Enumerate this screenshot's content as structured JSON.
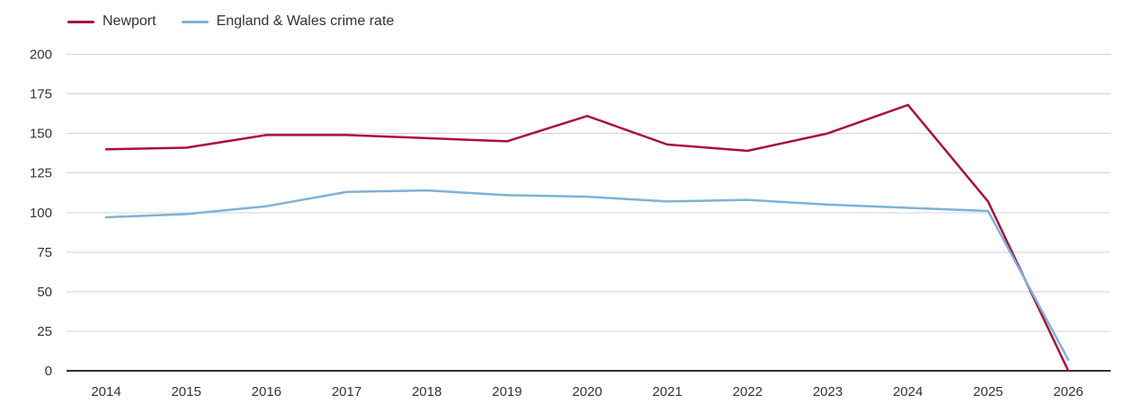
{
  "legend": {
    "items": [
      {
        "label": "Newport",
        "color": "#a8103a"
      },
      {
        "label": "England & Wales crime rate",
        "color": "#7db2d8"
      }
    ]
  },
  "chart_data": {
    "type": "line",
    "x": [
      2014,
      2015,
      2016,
      2017,
      2018,
      2019,
      2020,
      2021,
      2022,
      2023,
      2024,
      2025,
      2026
    ],
    "x_tick_labels": [
      "2014",
      "2015",
      "2016",
      "2017",
      "2018",
      "2019",
      "2020",
      "2021",
      "2022",
      "2023",
      "2024",
      "2025",
      "2026"
    ],
    "series": [
      {
        "name": "Newport",
        "color": "#a8103a",
        "values": [
          140,
          141,
          149,
          149,
          147,
          145,
          161,
          143,
          139,
          150,
          168,
          107,
          0
        ]
      },
      {
        "name": "England & Wales crime rate",
        "color": "#7db2d8",
        "values": [
          97,
          99,
          104,
          113,
          114,
          111,
          110,
          107,
          108,
          105,
          103,
          101,
          7
        ]
      }
    ],
    "title": "",
    "xlabel": "",
    "ylabel": "",
    "ylim": [
      0,
      200
    ],
    "y_tick_step": 25,
    "y_tick_labels": [
      "0",
      "25",
      "50",
      "75",
      "100",
      "125",
      "150",
      "175",
      "200"
    ],
    "grid": "horizontal",
    "legend_position": "top-left",
    "colors": {
      "grid_line": "#d3d3d3",
      "axis_line": "#333333",
      "tick_text": "#333333",
      "background": "#ffffff"
    }
  }
}
